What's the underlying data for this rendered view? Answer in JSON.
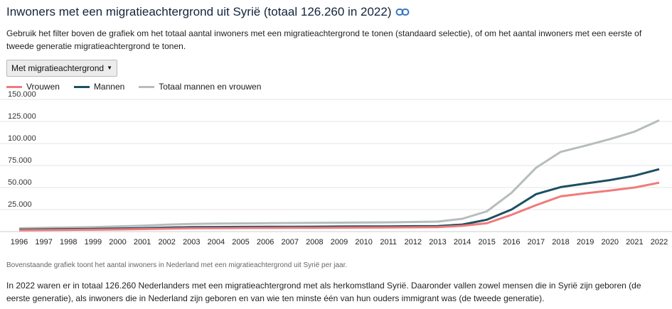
{
  "header": {
    "title": "Inwoners met een migratieachtergrond uit Syrië (totaal 126.260 in 2022)",
    "intro": "Gebruik het filter boven de grafiek om het totaal aantal inwoners met een migratieachtergrond te tonen (standaard selectie), of om het aantal inwoners met een eerste of tweede generatie migratieachtergrond te tonen."
  },
  "filter": {
    "selected": "Met migratieachtergrond"
  },
  "colors": {
    "vrouwen": "#f07b7b",
    "mannen": "#1d4f63",
    "totaal": "#b7bcbc"
  },
  "chart_data": {
    "type": "line",
    "x": [
      1996,
      1997,
      1998,
      1999,
      2000,
      2001,
      2002,
      2003,
      2004,
      2005,
      2006,
      2007,
      2008,
      2009,
      2010,
      2011,
      2012,
      2013,
      2014,
      2015,
      2016,
      2017,
      2018,
      2019,
      2020,
      2021,
      2022
    ],
    "series": [
      {
        "name": "Vrouwen",
        "values": [
          1500,
          1700,
          1900,
          2100,
          2400,
          2800,
          3300,
          3700,
          3900,
          4000,
          4100,
          4200,
          4300,
          4400,
          4500,
          4600,
          4800,
          5000,
          6500,
          9500,
          19000,
          30000,
          40000,
          43500,
          46500,
          50000,
          55500
        ]
      },
      {
        "name": "Mannen",
        "values": [
          2200,
          2500,
          2800,
          3000,
          3400,
          3900,
          4500,
          5000,
          5200,
          5300,
          5400,
          5500,
          5600,
          5700,
          5800,
          5900,
          6100,
          6300,
          8000,
          13500,
          25000,
          42500,
          50500,
          54500,
          58500,
          63500,
          70800
        ]
      },
      {
        "name": "Totaal mannen en vrouwen",
        "values": [
          3700,
          4200,
          4700,
          5100,
          5800,
          6700,
          7800,
          8700,
          9100,
          9300,
          9500,
          9700,
          9900,
          10100,
          10300,
          10500,
          10900,
          11300,
          14500,
          23000,
          44000,
          72500,
          90500,
          97500,
          105000,
          113500,
          126260
        ]
      }
    ],
    "ylim": [
      0,
      150000
    ],
    "y_ticks": [
      "25.000",
      "50.000",
      "75.000",
      "100.000",
      "125.000",
      "150.000"
    ],
    "y_tick_values": [
      25000,
      50000,
      75000,
      100000,
      125000,
      150000
    ],
    "grid": true,
    "legend_position": "top-left"
  },
  "caption": "Bovenstaande grafiek toont het aantal inwoners in Nederland met een migratieachtergrond uit Syrië per jaar.",
  "body_text": "In 2022 waren er in totaal 126.260 Nederlanders met een migratieachtergrond met als herkomstland Syrië. Daaronder vallen zowel mensen die in Syrië zijn geboren (de eerste generatie), als inwoners die in Nederland zijn geboren en van wie ten minste één van hun ouders immigrant was (de tweede generatie)."
}
